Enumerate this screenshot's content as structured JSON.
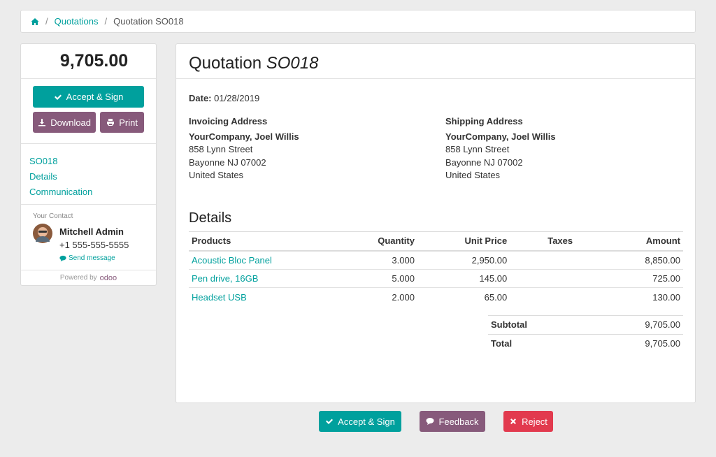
{
  "breadcrumb": {
    "items": [
      "Quotations",
      "Quotation SO018"
    ]
  },
  "sidebar": {
    "amount": "9,705.00",
    "accept_button": "Accept & Sign",
    "download_button": "Download",
    "print_button": "Print",
    "nav": [
      "SO018",
      "Details",
      "Communication"
    ],
    "contact_label": "Your Contact",
    "contact_name": "Mitchell Admin",
    "contact_phone": "+1 555-555-5555",
    "send_message": "Send message",
    "powered_by": "Powered by",
    "brand": "odoo"
  },
  "document": {
    "title": "Quotation",
    "number": "SO018",
    "date_label": "Date:",
    "date": "01/28/2019",
    "invoicing": {
      "label": "Invoicing Address",
      "name": "YourCompany, Joel Willis",
      "lines": [
        "858 Lynn Street",
        "Bayonne NJ 07002",
        "United States"
      ]
    },
    "shipping": {
      "label": "Shipping Address",
      "name": "YourCompany, Joel Willis",
      "lines": [
        "858 Lynn Street",
        "Bayonne NJ 07002",
        "United States"
      ]
    },
    "details_title": "Details",
    "table": {
      "columns": [
        "Products",
        "Quantity",
        "Unit Price",
        "Taxes",
        "Amount"
      ],
      "rows": [
        [
          "Acoustic Bloc Panel",
          "3.000",
          "2,950.00",
          "",
          "8,850.00"
        ],
        [
          "Pen drive, 16GB",
          "5.000",
          "145.00",
          "",
          "725.00"
        ],
        [
          "Headset USB",
          "2.000",
          "65.00",
          "",
          "130.00"
        ]
      ]
    },
    "totals": [
      [
        "Subtotal",
        "9,705.00"
      ],
      [
        "Total",
        "9,705.00"
      ]
    ]
  },
  "actions": [
    "Accept & Sign",
    "Feedback",
    "Reject"
  ]
}
